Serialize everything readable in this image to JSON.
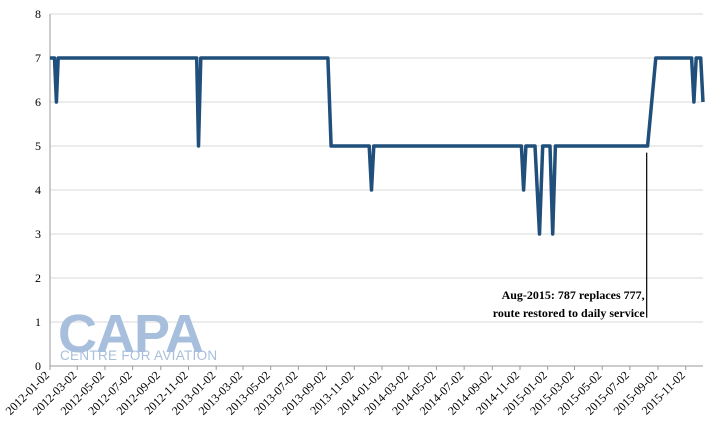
{
  "chart_data": {
    "type": "line",
    "title": "",
    "xlabel": "",
    "ylabel": "",
    "ylim": [
      0,
      8
    ],
    "yticks": [
      0,
      1,
      2,
      3,
      4,
      5,
      6,
      7,
      8
    ],
    "grid": "horizontal",
    "legend": "none",
    "line_color": "#1f4f7a",
    "xtick_labels": [
      "2012-01-02",
      "2012-03-02",
      "2012-05-02",
      "2012-07-02",
      "2012-09-02",
      "2012-11-02",
      "2013-01-02",
      "2013-03-02",
      "2013-05-02",
      "2013-07-02",
      "2013-09-02",
      "2013-11-02",
      "2014-01-02",
      "2014-03-02",
      "2014-05-02",
      "2014-07-02",
      "2014-09-02",
      "2014-11-02",
      "2015-01-02",
      "2015-03-02",
      "2015-05-02",
      "2015-07-02",
      "2015-09-02",
      "2015-11-02"
    ],
    "series": [
      {
        "x": [
          "2012-01-02",
          "2012-01-12",
          "2012-01-16",
          "2012-01-20",
          "2012-11-20",
          "2012-11-24",
          "2012-11-29",
          "2013-09-05",
          "2013-09-12",
          "2013-12-05",
          "2013-12-10",
          "2013-12-15",
          "2014-11-05",
          "2014-11-10",
          "2014-11-15",
          "2014-12-05",
          "2014-12-15",
          "2014-12-22",
          "2015-01-07",
          "2015-01-13",
          "2015-01-19",
          "2015-01-25",
          "2015-08-10",
          "2015-08-28",
          "2015-11-15",
          "2015-11-20",
          "2015-11-25",
          "2015-12-05",
          "2015-12-10"
        ],
        "y": [
          7,
          7,
          6,
          7,
          7,
          5,
          7,
          7,
          5,
          5,
          4,
          5,
          5,
          4,
          5,
          5,
          3,
          5,
          5,
          3,
          5,
          5,
          5,
          7,
          7,
          6,
          7,
          7,
          6
        ]
      }
    ],
    "annotation": {
      "line1": "Aug-2015: 787 replaces 777,",
      "line2": "route restored to daily service",
      "date": "2015-08-08",
      "y_from": 1.1,
      "y_to": 4.85
    }
  },
  "logo": {
    "text": "CAPA",
    "subtext": "CENTRE FOR AVIATION",
    "color": "#a7bfdc"
  }
}
